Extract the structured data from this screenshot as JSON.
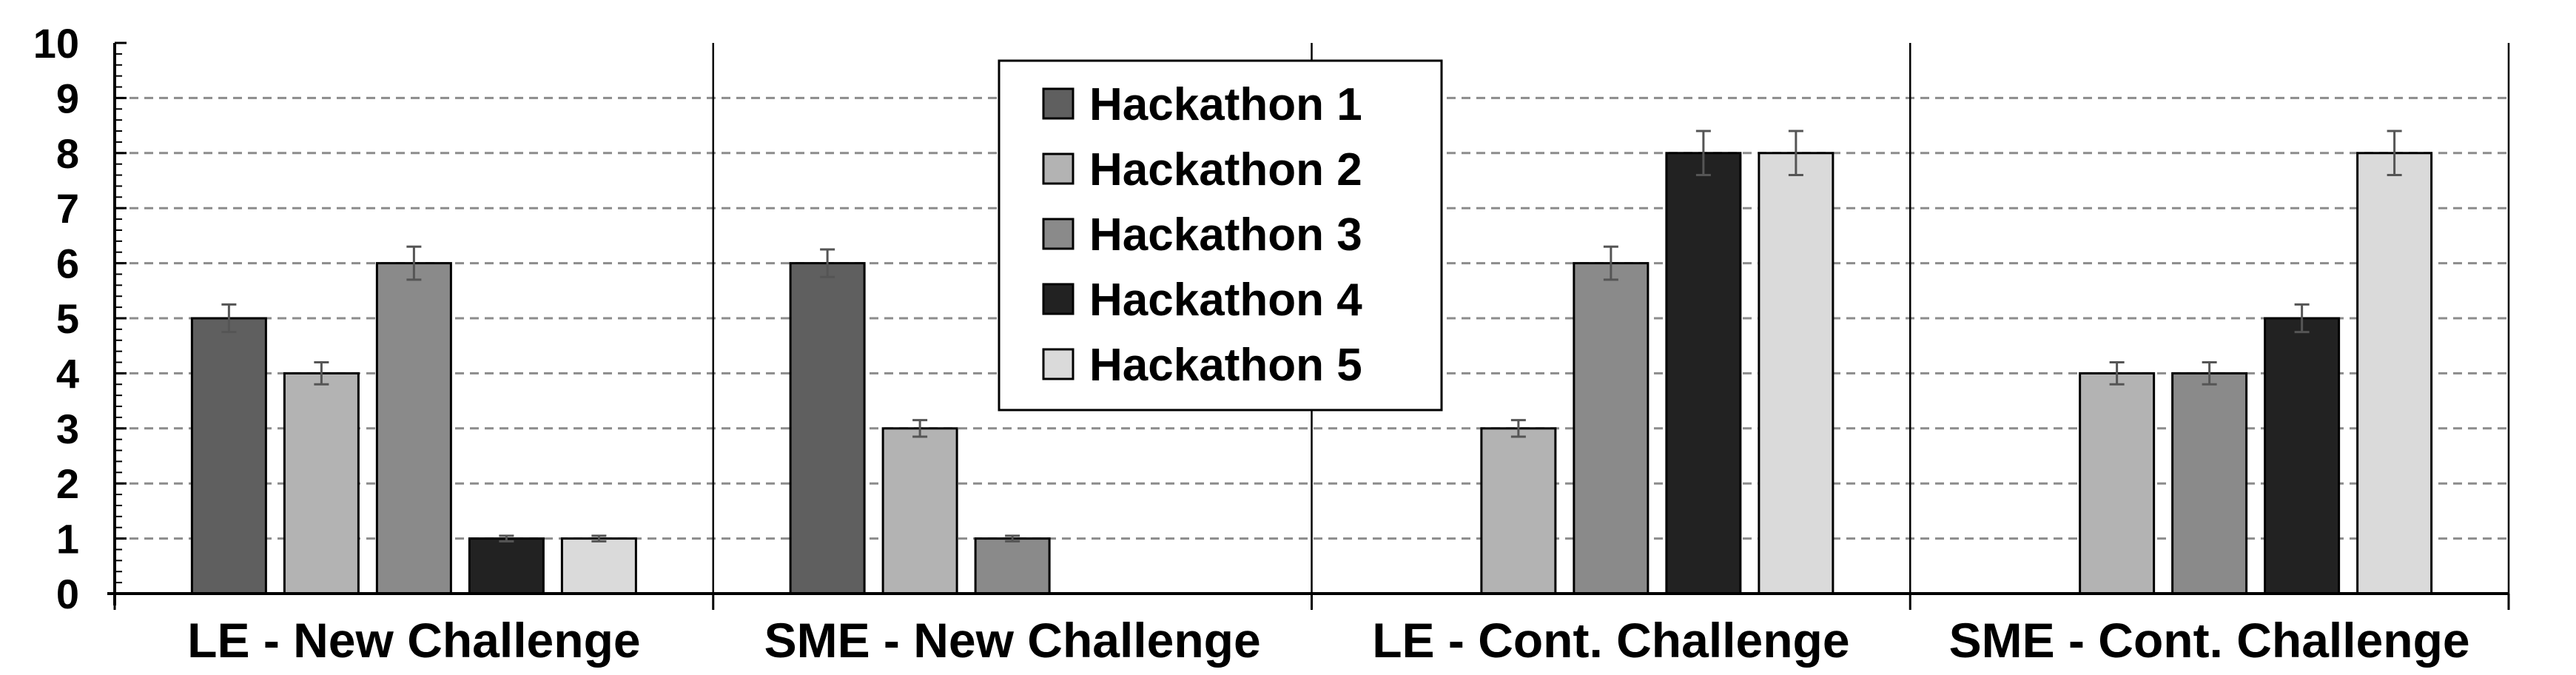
{
  "chart_data": {
    "type": "bar",
    "title": "",
    "xlabel": "",
    "ylabel": "",
    "ylim": [
      0,
      10
    ],
    "yticks": [
      "0",
      "1",
      "2",
      "3",
      "4",
      "5",
      "6",
      "7",
      "8",
      "9",
      "10"
    ],
    "grid": true,
    "legend_position": "top-center",
    "categories": [
      "LE - New Challenge",
      "SME - New Challenge",
      "LE - Cont. Challenge",
      "SME - Cont. Challenge"
    ],
    "series": [
      {
        "name": "Hackathon 1",
        "color": "#5f5f5f",
        "values": [
          5,
          6,
          null,
          null
        ],
        "errors": [
          0.25,
          0.25,
          null,
          null
        ]
      },
      {
        "name": "Hackathon 2",
        "color": "#b3b3b3",
        "values": [
          4,
          3,
          3,
          4
        ],
        "errors": [
          0.2,
          0.15,
          0.15,
          0.2
        ]
      },
      {
        "name": "Hackathon 3",
        "color": "#8a8a8a",
        "values": [
          6,
          1,
          6,
          4
        ],
        "errors": [
          0.3,
          0.05,
          0.3,
          0.2
        ]
      },
      {
        "name": "Hackathon 4",
        "color": "#222222",
        "values": [
          1,
          null,
          8,
          5
        ],
        "errors": [
          0.05,
          null,
          0.4,
          0.25
        ]
      },
      {
        "name": "Hackathon 5",
        "color": "#dadada",
        "values": [
          1,
          null,
          8,
          8
        ],
        "errors": [
          0.05,
          null,
          0.4,
          0.4
        ]
      }
    ]
  }
}
